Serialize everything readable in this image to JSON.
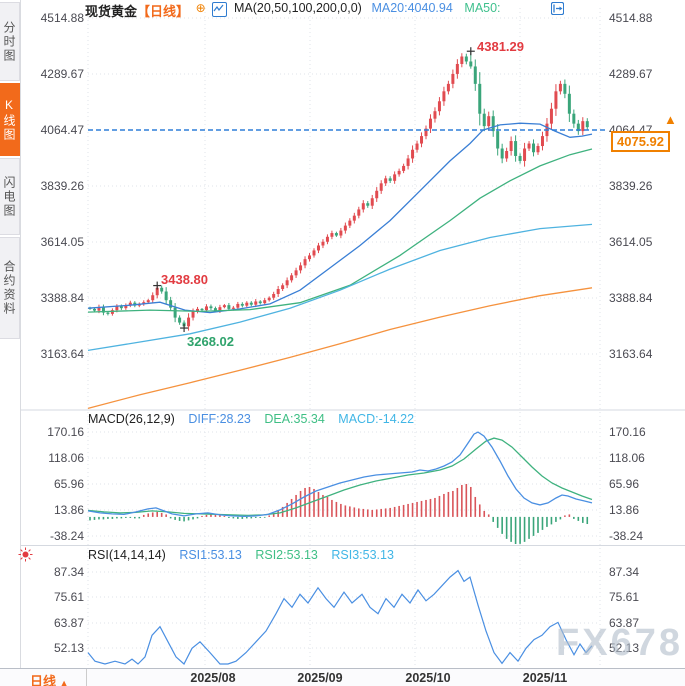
{
  "app": {
    "watermark": "FX678"
  },
  "sidebar": {
    "tabs": [
      {
        "label": "分时图",
        "active": false
      },
      {
        "label": "K线图",
        "active": true
      },
      {
        "label": "闪电图",
        "active": false
      },
      {
        "label": "合约资料",
        "active": false
      }
    ]
  },
  "header": {
    "title": "现货黄金",
    "period": "【日线】",
    "compare_icon": "⊕",
    "ma_overlay": "MA(20,50,100,200,0,0)",
    "ma20": "MA20:4040.94",
    "ma50": "MA50:"
  },
  "toolbar": {
    "icons": [
      "move-icon",
      "zoom-x-axis-icon",
      "zoom-y-axis-icon",
      "pan-right-icon"
    ]
  },
  "main_axis": {
    "labels": [
      "4514.88",
      "4289.67",
      "4064.47",
      "3839.26",
      "3614.05",
      "3388.84",
      "3163.64"
    ]
  },
  "annotations": {
    "peak": "4381.29",
    "swing_high": "3438.80",
    "swing_low": "3268.02"
  },
  "last_price": {
    "value": "4075.92",
    "arrow": "▲"
  },
  "macd_panel": {
    "title": "MACD(26,12,9)",
    "diff": "DIFF:28.23",
    "dea": "DEA:35.34",
    "macd": "MACD:-14.22",
    "axis": [
      "170.16",
      "118.06",
      "65.96",
      "13.86",
      "-38.24"
    ]
  },
  "rsi_panel": {
    "title": "RSI(14,14,14)",
    "rsi1": "RSI1:53.13",
    "rsi2": "RSI2:53.13",
    "rsi3": "RSI3:53.13",
    "axis": [
      "87.34",
      "75.61",
      "63.87",
      "52.13"
    ]
  },
  "bottom_bar": {
    "period": "日线",
    "arrow": "▲",
    "dates": [
      "2025/08",
      "2025/09",
      "2025/10",
      "2025/11"
    ]
  },
  "colors": {
    "up": "#e14b50",
    "down": "#3aa57a",
    "ma20": "#3a7fd5",
    "ma50": "#3fb27f",
    "ma100": "#4fb3e0",
    "ma200": "#f5923e",
    "dashed": "#2f7ed8",
    "diff_line": "#4a8fe2",
    "dea_line": "#3fb27f",
    "rsi_line": "#4a8fe2",
    "hist_up": "#d9555a",
    "hist_down": "#3aa57a",
    "accent_orange": "#f26a1b",
    "grid": "#dfe3ea",
    "watermark": "#b0bdca"
  },
  "chart_data": [
    {
      "type": "candlestick",
      "title": "现货黄金 日线",
      "ylim": [
        3100,
        4560
      ],
      "x_axis": [
        "2025/08",
        "2025/09",
        "2025/10",
        "2025/11"
      ],
      "axis_ticks": [
        4514.88,
        4289.67,
        4064.47,
        3839.26,
        3614.05,
        3388.84,
        3163.64
      ],
      "dashed_line": 4064.47,
      "last_price": 4075.92,
      "open_first": 3350,
      "closes": [
        3345,
        3338,
        3352,
        3330,
        3325,
        3340,
        3355,
        3348,
        3360,
        3370,
        3358,
        3365,
        3372,
        3380,
        3400,
        3430,
        3415,
        3380,
        3350,
        3310,
        3290,
        3275,
        3310,
        3335,
        3345,
        3340,
        3355,
        3348,
        3338,
        3352,
        3360,
        3345,
        3350,
        3365,
        3358,
        3370,
        3362,
        3375,
        3368,
        3380,
        3390,
        3405,
        3425,
        3440,
        3460,
        3480,
        3500,
        3520,
        3545,
        3560,
        3580,
        3600,
        3615,
        3635,
        3650,
        3640,
        3660,
        3680,
        3700,
        3720,
        3745,
        3770,
        3760,
        3790,
        3820,
        3850,
        3870,
        3860,
        3886,
        3900,
        3920,
        3950,
        3985,
        4010,
        4040,
        4070,
        4110,
        4140,
        4180,
        4220,
        4250,
        4290,
        4330,
        4360,
        4340,
        4320,
        4250,
        4130,
        4080,
        4120,
        4060,
        3990,
        3950,
        3980,
        4020,
        3960,
        3940,
        3990,
        4010,
        3975,
        4000,
        4040,
        4090,
        4150,
        4220,
        4250,
        4210,
        4130,
        4090,
        4060,
        4100,
        4075.92
      ],
      "wick_overrides": {
        "15": {
          "high": 3438.8
        },
        "21": {
          "low": 3268.02
        },
        "85": {
          "high": 4381.29
        }
      },
      "markers": [
        {
          "x_index": 15,
          "price": 3438.8,
          "label": "3438.80"
        },
        {
          "x_index": 21,
          "price": 3268.02,
          "label": "3268.02"
        },
        {
          "x_index": 85,
          "price": 4381.29,
          "label": "4381.29"
        }
      ],
      "ma_series": [
        {
          "name": "MA20",
          "points": [
            [
              88,
              3348
            ],
            [
              130,
              3360
            ],
            [
              160,
              3372
            ],
            [
              185,
              3340
            ],
            [
              210,
              3330
            ],
            [
              240,
              3345
            ],
            [
              270,
              3365
            ],
            [
              300,
              3420
            ],
            [
              330,
              3510
            ],
            [
              360,
              3600
            ],
            [
              390,
              3700
            ],
            [
              420,
              3820
            ],
            [
              450,
              3940
            ],
            [
              470,
              4010
            ],
            [
              483,
              4064
            ],
            [
              500,
              4085
            ],
            [
              520,
              4092
            ],
            [
              540,
              4088
            ],
            [
              555,
              4060
            ],
            [
              570,
              4035
            ],
            [
              582,
              4040
            ],
            [
              592,
              4048
            ]
          ]
        },
        {
          "name": "MA50",
          "points": [
            [
              88,
              3332
            ],
            [
              150,
              3340
            ],
            [
              200,
              3335
            ],
            [
              250,
              3342
            ],
            [
              300,
              3370
            ],
            [
              350,
              3440
            ],
            [
              400,
              3560
            ],
            [
              450,
              3700
            ],
            [
              480,
              3790
            ],
            [
              510,
              3860
            ],
            [
              540,
              3920
            ],
            [
              570,
              3965
            ],
            [
              592,
              3988
            ]
          ]
        },
        {
          "name": "MA100",
          "points": [
            [
              88,
              3178
            ],
            [
              140,
              3212
            ],
            [
              190,
              3245
            ],
            [
              240,
              3292
            ],
            [
              290,
              3348
            ],
            [
              340,
              3420
            ],
            [
              390,
              3505
            ],
            [
              440,
              3580
            ],
            [
              490,
              3632
            ],
            [
              540,
              3668
            ],
            [
              592,
              3685
            ]
          ]
        },
        {
          "name": "MA200",
          "points": [
            [
              88,
              2945
            ],
            [
              140,
              3000
            ],
            [
              190,
              3048
            ],
            [
              240,
              3098
            ],
            [
              290,
              3150
            ],
            [
              340,
              3205
            ],
            [
              390,
              3262
            ],
            [
              440,
              3312
            ],
            [
              490,
              3358
            ],
            [
              540,
              3398
            ],
            [
              592,
              3430
            ]
          ]
        }
      ]
    },
    {
      "type": "macd",
      "params": "26,12,9",
      "diff": 28.23,
      "dea": 35.34,
      "macd": -14.22,
      "axis_ticks": [
        170.16,
        118.06,
        65.96,
        13.86,
        -38.24
      ],
      "histogram": [
        -7,
        -6,
        -5,
        -5,
        -4,
        -4,
        -3,
        -3,
        -2,
        -2,
        -3,
        -3,
        4,
        7,
        9,
        10,
        8,
        5,
        -3,
        -6,
        -8,
        -9,
        -7,
        -5,
        -3,
        2,
        4,
        5,
        4,
        3,
        2,
        -2,
        -3,
        -4,
        -4,
        -3,
        -3,
        -2,
        -2,
        -1,
        3,
        8,
        14,
        20,
        28,
        36,
        44,
        52,
        58,
        60,
        56,
        50,
        44,
        40,
        34,
        30,
        26,
        23,
        21,
        19,
        17,
        16,
        15,
        14,
        15,
        16,
        17,
        18,
        20,
        22,
        24,
        26,
        28,
        30,
        32,
        34,
        36,
        38,
        42,
        46,
        50,
        52,
        58,
        64,
        66,
        60,
        40,
        25,
        12,
        5,
        -10,
        -22,
        -34,
        -44,
        -50,
        -55,
        -54,
        -50,
        -44,
        -38,
        -32,
        -26,
        -20,
        -15,
        -10,
        -5,
        3,
        5,
        -4,
        -8,
        -12,
        -14.22
      ],
      "diff_line": [
        [
          88,
          12
        ],
        [
          100,
          8
        ],
        [
          112,
          6
        ],
        [
          124,
          5
        ],
        [
          136,
          10
        ],
        [
          148,
          16
        ],
        [
          156,
          18
        ],
        [
          164,
          12
        ],
        [
          172,
          6
        ],
        [
          184,
          2
        ],
        [
          196,
          6
        ],
        [
          208,
          8
        ],
        [
          220,
          4
        ],
        [
          232,
          2
        ],
        [
          244,
          1
        ],
        [
          256,
          2
        ],
        [
          268,
          5
        ],
        [
          280,
          14
        ],
        [
          292,
          26
        ],
        [
          304,
          40
        ],
        [
          316,
          52
        ],
        [
          328,
          60
        ],
        [
          340,
          68
        ],
        [
          352,
          74
        ],
        [
          364,
          80
        ],
        [
          376,
          84
        ],
        [
          388,
          86
        ],
        [
          400,
          88
        ],
        [
          412,
          90
        ],
        [
          420,
          94
        ],
        [
          428,
          92
        ],
        [
          436,
          96
        ],
        [
          444,
          102
        ],
        [
          452,
          110
        ],
        [
          460,
          124
        ],
        [
          468,
          148
        ],
        [
          474,
          166
        ],
        [
          478,
          170
        ],
        [
          484,
          162
        ],
        [
          492,
          140
        ],
        [
          500,
          112
        ],
        [
          508,
          82
        ],
        [
          516,
          56
        ],
        [
          524,
          38
        ],
        [
          532,
          28
        ],
        [
          540,
          24
        ],
        [
          548,
          28
        ],
        [
          556,
          38
        ],
        [
          562,
          44
        ],
        [
          568,
          42
        ],
        [
          576,
          36
        ],
        [
          584,
          32
        ],
        [
          592,
          28
        ]
      ],
      "dea_line": [
        [
          88,
          13
        ],
        [
          104,
          10
        ],
        [
          120,
          8
        ],
        [
          136,
          9
        ],
        [
          152,
          12
        ],
        [
          168,
          10
        ],
        [
          184,
          7
        ],
        [
          200,
          6
        ],
        [
          216,
          5
        ],
        [
          232,
          4
        ],
        [
          248,
          3
        ],
        [
          264,
          4
        ],
        [
          280,
          8
        ],
        [
          296,
          18
        ],
        [
          312,
          30
        ],
        [
          328,
          42
        ],
        [
          344,
          54
        ],
        [
          360,
          64
        ],
        [
          376,
          72
        ],
        [
          392,
          78
        ],
        [
          408,
          84
        ],
        [
          424,
          88
        ],
        [
          440,
          94
        ],
        [
          452,
          102
        ],
        [
          464,
          116
        ],
        [
          476,
          136
        ],
        [
          486,
          152
        ],
        [
          494,
          158
        ],
        [
          502,
          154
        ],
        [
          512,
          140
        ],
        [
          522,
          120
        ],
        [
          532,
          100
        ],
        [
          542,
          82
        ],
        [
          552,
          68
        ],
        [
          562,
          58
        ],
        [
          572,
          50
        ],
        [
          582,
          42
        ],
        [
          592,
          35
        ]
      ]
    },
    {
      "type": "line",
      "name": "RSI(14,14,14)",
      "values_now": [
        53.13,
        53.13,
        53.13
      ],
      "axis_ticks": [
        87.34,
        75.61,
        63.87,
        52.13
      ],
      "points": [
        [
          88,
          50
        ],
        [
          95,
          46
        ],
        [
          105,
          42
        ],
        [
          115,
          46
        ],
        [
          125,
          44
        ],
        [
          132,
          47
        ],
        [
          138,
          40
        ],
        [
          145,
          48
        ],
        [
          152,
          58
        ],
        [
          160,
          62
        ],
        [
          168,
          55
        ],
        [
          176,
          48
        ],
        [
          184,
          44
        ],
        [
          192,
          52
        ],
        [
          200,
          55
        ],
        [
          210,
          50
        ],
        [
          220,
          44
        ],
        [
          228,
          42
        ],
        [
          236,
          46
        ],
        [
          246,
          50
        ],
        [
          256,
          55
        ],
        [
          266,
          60
        ],
        [
          276,
          68
        ],
        [
          284,
          75
        ],
        [
          292,
          71
        ],
        [
          300,
          77
        ],
        [
          308,
          73
        ],
        [
          318,
          80
        ],
        [
          326,
          75
        ],
        [
          334,
          71
        ],
        [
          344,
          78
        ],
        [
          352,
          73
        ],
        [
          362,
          77
        ],
        [
          370,
          71
        ],
        [
          378,
          68
        ],
        [
          386,
          75
        ],
        [
          394,
          71
        ],
        [
          402,
          77
        ],
        [
          410,
          73
        ],
        [
          418,
          79
        ],
        [
          426,
          74
        ],
        [
          434,
          77
        ],
        [
          442,
          81
        ],
        [
          450,
          85
        ],
        [
          458,
          88
        ],
        [
          464,
          83
        ],
        [
          470,
          85
        ],
        [
          478,
          72
        ],
        [
          486,
          60
        ],
        [
          494,
          50
        ],
        [
          502,
          45
        ],
        [
          510,
          50
        ],
        [
          518,
          46
        ],
        [
          526,
          52
        ],
        [
          534,
          56
        ],
        [
          542,
          58
        ],
        [
          550,
          62
        ],
        [
          558,
          64
        ],
        [
          566,
          56
        ],
        [
          574,
          49
        ],
        [
          580,
          54
        ],
        [
          586,
          50
        ],
        [
          592,
          53.13
        ]
      ]
    }
  ]
}
